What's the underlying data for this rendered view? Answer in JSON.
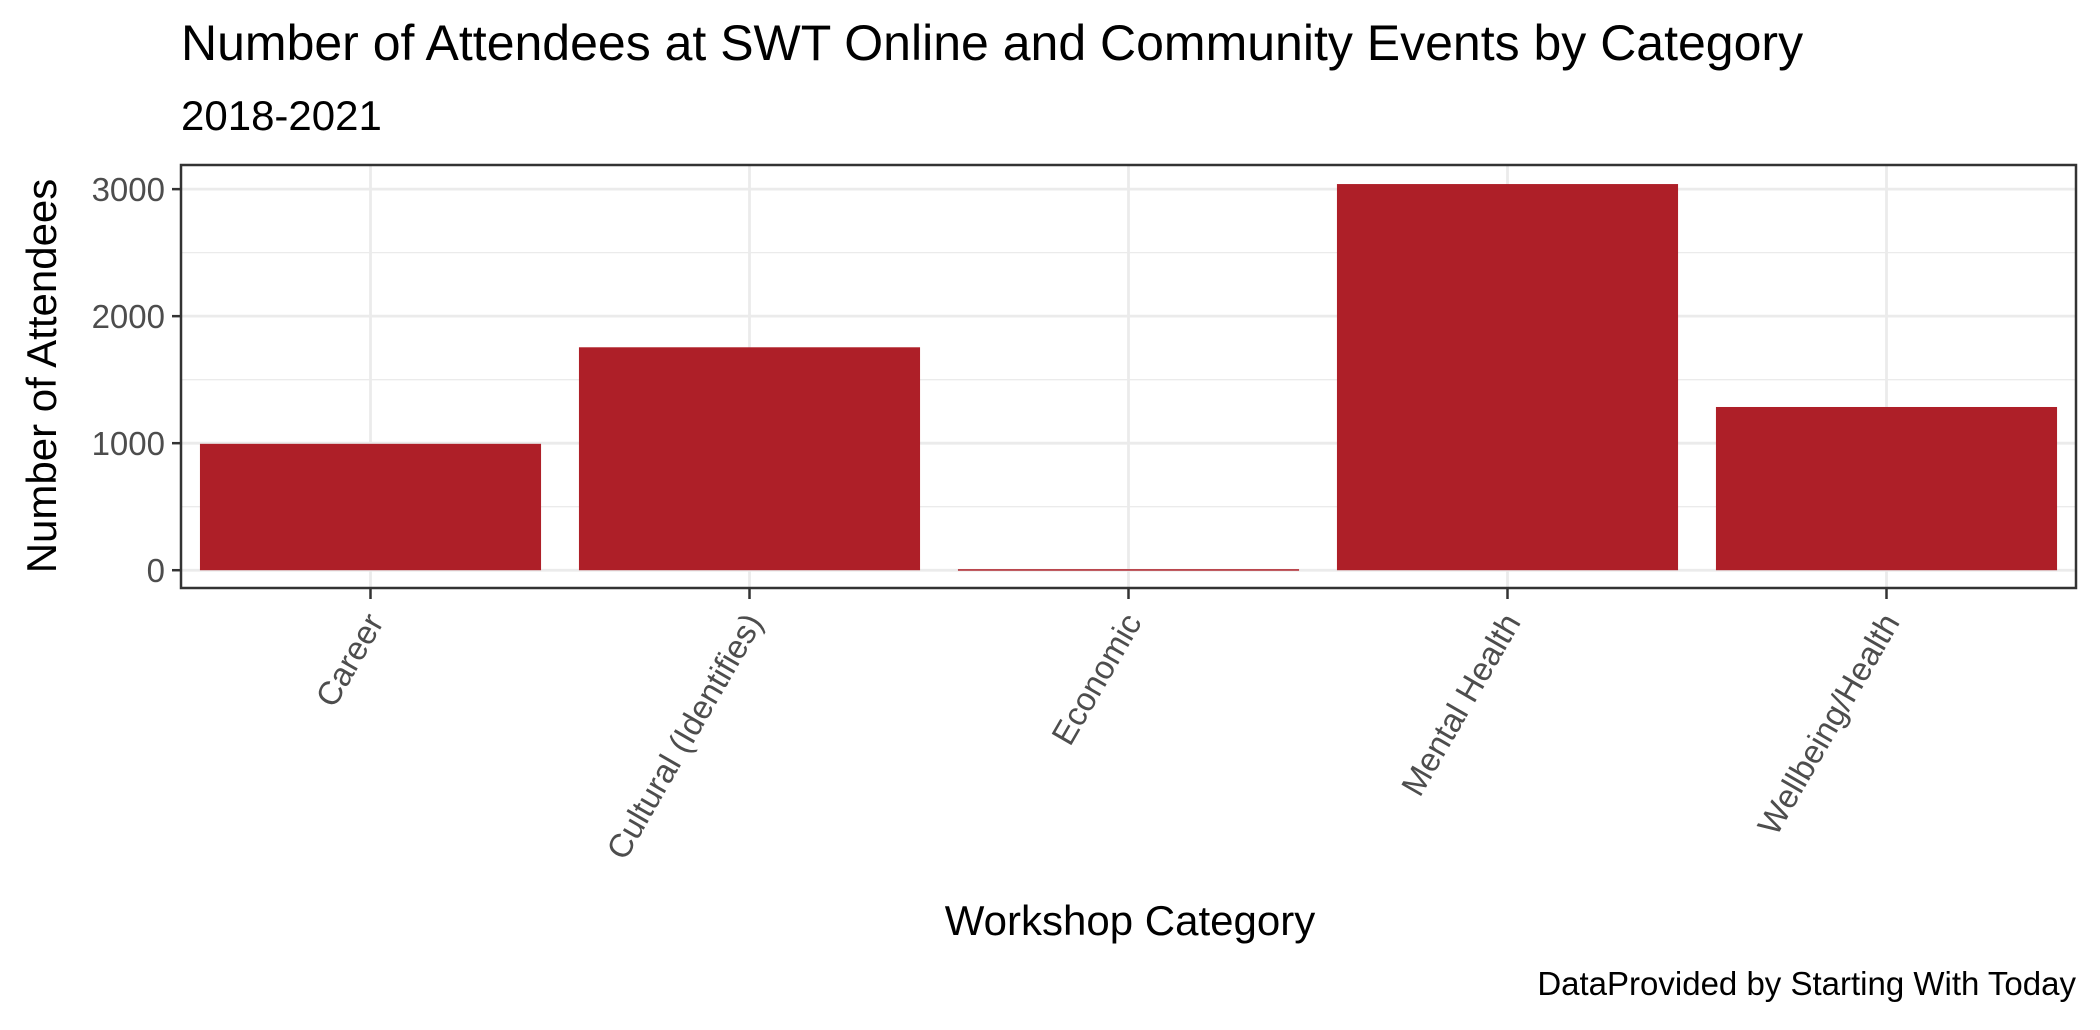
{
  "chart_data": {
    "type": "bar",
    "title": "Number of Attendees at SWT Online and Community Events by Category",
    "subtitle": "2018-2021",
    "xlabel": "Workshop Category",
    "ylabel": "Number of Attendees",
    "caption": "DataProvided by Starting With Today",
    "categories": [
      "Career",
      "Cultural (Identifies)",
      "Economic",
      "Mental Health",
      "Wellbeing/Health"
    ],
    "values": [
      995,
      1755,
      8,
      3040,
      1285
    ],
    "yticks": [
      0,
      1000,
      2000,
      3000
    ],
    "ylim": [
      -140,
      3190
    ],
    "bar_color": "#AE1F28",
    "grid": true,
    "legend": "none"
  }
}
